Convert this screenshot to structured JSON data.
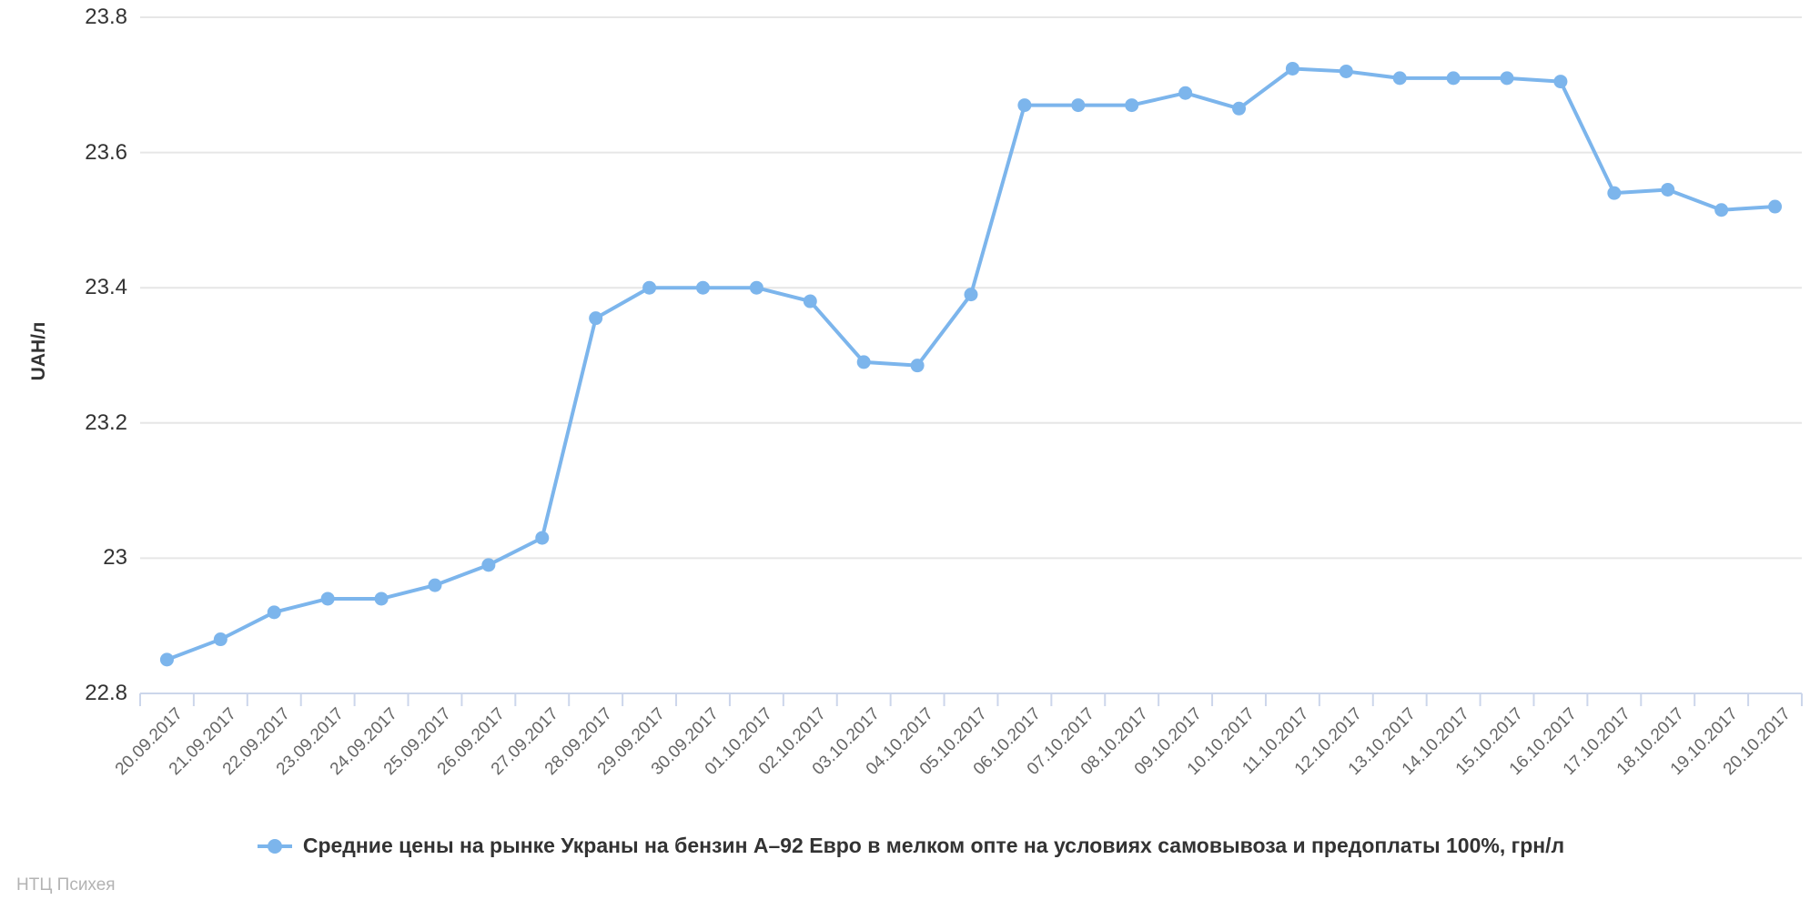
{
  "chart_data": {
    "type": "line",
    "title": "",
    "xlabel": "",
    "ylabel": "UAH/л",
    "ylim": [
      22.8,
      23.8
    ],
    "grid": true,
    "legend_position": "bottom-center",
    "yticks": {
      "values": [
        22.8,
        23.0,
        23.2,
        23.4,
        23.6,
        23.8
      ],
      "labels": [
        "22.8",
        "23",
        "23.2",
        "23.4",
        "23.6",
        "23.8"
      ]
    },
    "categories": [
      "20.09.2017",
      "21.09.2017",
      "22.09.2017",
      "23.09.2017",
      "24.09.2017",
      "25.09.2017",
      "26.09.2017",
      "27.09.2017",
      "28.09.2017",
      "29.09.2017",
      "30.09.2017",
      "01.10.2017",
      "02.10.2017",
      "03.10.2017",
      "04.10.2017",
      "05.10.2017",
      "06.10.2017",
      "07.10.2017",
      "08.10.2017",
      "09.10.2017",
      "10.10.2017",
      "11.10.2017",
      "12.10.2017",
      "13.10.2017",
      "14.10.2017",
      "15.10.2017",
      "16.10.2017",
      "17.10.2017",
      "18.10.2017",
      "19.10.2017",
      "20.10.2017"
    ],
    "series": [
      {
        "name": "Средние цены на рынке Украны на бензин А–92 Евро в мелком опте на условиях самовывоза и предоплаты 100%, грн/л",
        "values": [
          22.85,
          22.88,
          22.92,
          22.94,
          22.94,
          22.96,
          22.99,
          23.03,
          23.355,
          23.4,
          23.4,
          23.4,
          23.38,
          23.29,
          23.285,
          23.39,
          23.67,
          23.67,
          23.67,
          23.688,
          23.665,
          23.724,
          23.72,
          23.71,
          23.71,
          23.71,
          23.705,
          23.54,
          23.545,
          23.515,
          23.52
        ]
      }
    ],
    "colors": {
      "series_line": "#7cb5ec",
      "marker_fill": "#7cb5ec",
      "grid_line": "#e6e6e6",
      "axis_line": "#ccd6eb",
      "y_label_text": "#333333",
      "x_label_text": "#666666",
      "legend_text": "#333333",
      "credit_text": "#b3b3b3"
    }
  },
  "legend": {
    "label": "Средние цены на рынке Украны на бензин А–92 Евро в мелком опте на условиях самовывоза и предоплаты 100%, грн/л"
  },
  "branding": {
    "credit": "НТЦ Психея"
  }
}
